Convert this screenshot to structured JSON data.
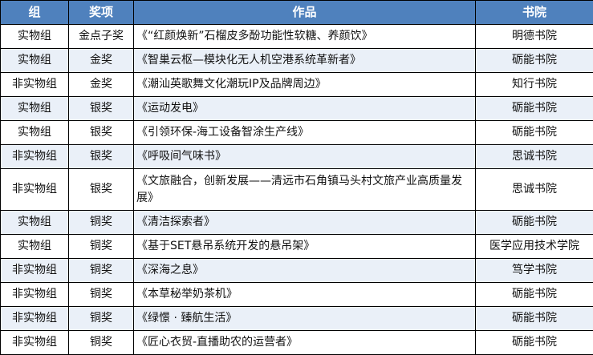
{
  "headers": [
    "组",
    "奖项",
    "作品",
    "书院"
  ],
  "header_color": "#4f81bd",
  "stripe_color": "#eaf0f8",
  "rows": [
    {
      "group": "实物组",
      "award": "金点子奖",
      "work": "《“红颜焕新”石榴皮多酚功能性软糖、养颜饮》",
      "college": "明德书院"
    },
    {
      "group": "实物组",
      "award": "金奖",
      "work": "《智巢云枢—模块化无人机空港系统革新者》",
      "college": "砺能书院"
    },
    {
      "group": "非实物组",
      "award": "金奖",
      "work": "《潮汕英歌舞文化潮玩IP及品牌周边》",
      "college": "知行书院"
    },
    {
      "group": "实物组",
      "award": "银奖",
      "work": "《运动发电》",
      "college": "砺能书院"
    },
    {
      "group": "实物组",
      "award": "银奖",
      "work": "《引领环保-海工设备智涂生产线》",
      "college": "砺能书院"
    },
    {
      "group": "非实物组",
      "award": "银奖",
      "work": "《呼吸间气味书》",
      "college": "思诚书院"
    },
    {
      "group": "非实物组",
      "award": "银奖",
      "work": "《文旅融合，创新发展——清远市石角镇马头村文旅产业高质量发展》",
      "college": "思诚书院"
    },
    {
      "group": "实物组",
      "award": "铜奖",
      "work": "《清洁探索者》",
      "college": "砺能书院"
    },
    {
      "group": "实物组",
      "award": "铜奖",
      "work": "《基于SET悬吊系统开发的悬吊架》",
      "college": "医学应用技术学院"
    },
    {
      "group": "非实物组",
      "award": "铜奖",
      "work": "《深海之息》",
      "college": "笃学书院"
    },
    {
      "group": "非实物组",
      "award": "铜奖",
      "work": "《本草秘举奶茶机》",
      "college": "砺能书院"
    },
    {
      "group": "非实物组",
      "award": "铜奖",
      "work": "《绿憬 · 臻航生活》",
      "college": "砺能书院"
    },
    {
      "group": "非实物组",
      "award": "铜奖",
      "work": "《匠心衣贸-直播助农的运营者》",
      "college": "砺能书院"
    }
  ]
}
